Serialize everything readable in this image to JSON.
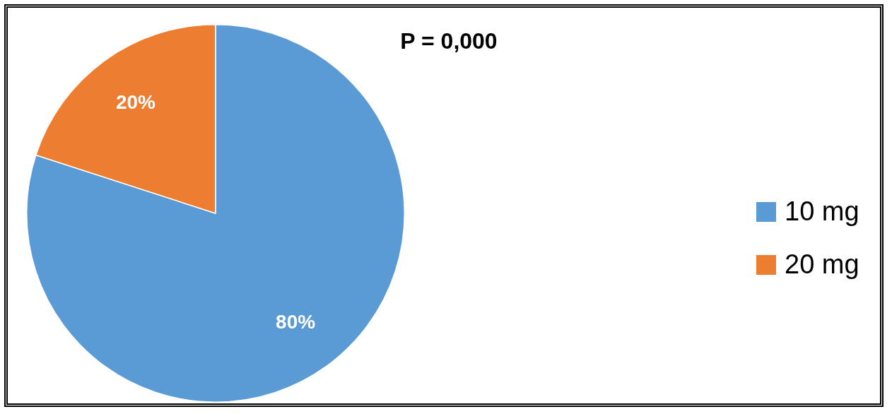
{
  "chart_data": {
    "type": "pie",
    "title": "P = 0,000",
    "categories": [
      "10 mg",
      "20 mg"
    ],
    "values": [
      80,
      20
    ],
    "colors": [
      "#5b9bd5",
      "#ed7d31"
    ],
    "value_labels": [
      "80%",
      "20%"
    ],
    "legend": "right"
  }
}
